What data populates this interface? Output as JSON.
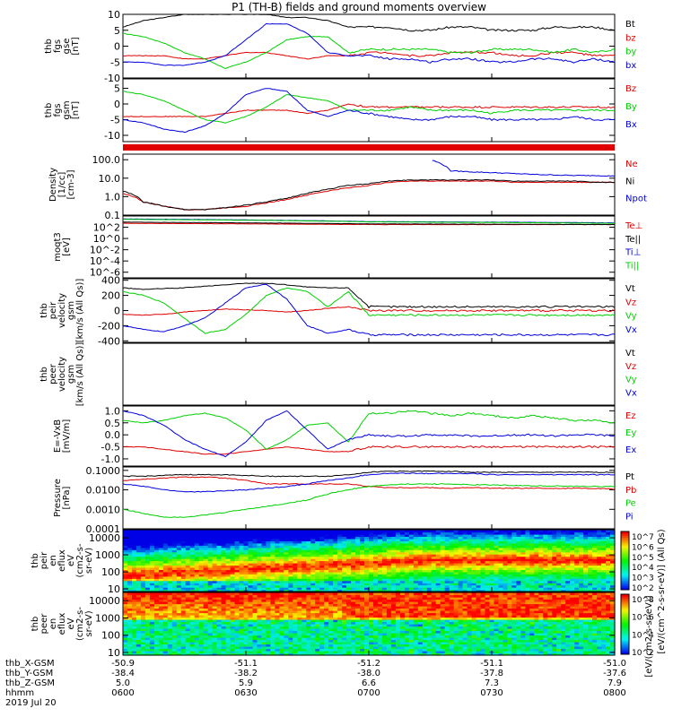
{
  "title": "P1 (TH-B) fields and ground moments overview",
  "colors": {
    "black": "#000000",
    "red": "#e00000",
    "green": "#00d000",
    "blue": "#0000e0"
  },
  "x_axis": {
    "ticks": [
      "0600",
      "0630",
      "0700",
      "0730",
      "0800"
    ],
    "rows": [
      {
        "label": "thb_X-GSM",
        "values": [
          "-50.9",
          "-51.1",
          "-51.2",
          "-51.1",
          "-51.0"
        ]
      },
      {
        "label": "thb_Y-GSM",
        "values": [
          "-38.4",
          "-38.2",
          "-38.0",
          "-37.8",
          "-37.6"
        ]
      },
      {
        "label": "thb_Z-GSM",
        "values": [
          "5.0",
          "5.9",
          "6.6",
          "7.3",
          "7.9"
        ]
      },
      {
        "label": "hhmm",
        "values": [
          "0600",
          "0630",
          "0700",
          "0730",
          "0800"
        ]
      }
    ],
    "date": "2019 Jul 20"
  },
  "colorbar": {
    "label": "[eV/(cm2-s-sr-eV)]",
    "label_right": "[eV/(cm^2-s-sr-eV)] (All Qs)",
    "ticks_top": [
      "10^7",
      "10^6",
      "10^5",
      "10^4",
      "10^3",
      "10^2"
    ],
    "ticks_bottom": [
      "10^8",
      "10^6",
      "10^4",
      "10^2"
    ]
  },
  "chart_data": [
    {
      "type": "line",
      "ylabel": [
        "thb",
        "fgs",
        "gse",
        "[nT]"
      ],
      "ylim": [
        -10,
        10
      ],
      "yticks": [
        "10",
        "5",
        "0",
        "-5",
        "-10"
      ],
      "series": [
        {
          "name": "Bt",
          "color": "#000000"
        },
        {
          "name": "bz",
          "color": "#e00000"
        },
        {
          "name": "by",
          "color": "#00d000"
        },
        {
          "name": "bx",
          "color": "#0000e0"
        }
      ],
      "x": [
        0,
        5,
        10,
        15,
        20,
        25,
        30,
        35,
        40,
        45,
        50,
        55,
        60,
        65,
        70,
        75,
        80,
        85,
        90,
        95,
        100,
        105,
        110,
        115,
        120
      ],
      "values": {
        "Bt": [
          6,
          8,
          9,
          10,
          10,
          10,
          10,
          10,
          9,
          9,
          8,
          6,
          6,
          6,
          5,
          5,
          6,
          6,
          5,
          5,
          5,
          6,
          6,
          6,
          5
        ],
        "bz": [
          -3,
          -3,
          -3,
          -4,
          -4,
          -3,
          -2,
          -2,
          -3,
          -4,
          -3,
          -3,
          -2,
          -2,
          -3,
          -3,
          -2,
          -2,
          -2,
          -3,
          -3,
          -2,
          -2,
          -3,
          -3
        ],
        "by": [
          4,
          3,
          1,
          -2,
          -4,
          -7,
          -5,
          -2,
          2,
          3,
          3,
          -2,
          -1,
          -1,
          -1,
          -1,
          -2,
          -2,
          -1,
          -1,
          -1,
          -2,
          -1,
          -2,
          -1
        ],
        "bx": [
          -5,
          -5,
          -6,
          -6,
          -5,
          -3,
          2,
          7,
          7,
          4,
          -2,
          -3,
          -3,
          -4,
          -4,
          -5,
          -4,
          -4,
          -5,
          -5,
          -4,
          -4,
          -5,
          -4,
          -5
        ]
      }
    },
    {
      "type": "line",
      "ylabel": [
        "thb",
        "fgs",
        "gsm",
        "[nT]"
      ],
      "ylim": [
        -12,
        8
      ],
      "yticks": [
        "5",
        "0",
        "-5",
        "-10"
      ],
      "series": [
        {
          "name": "Bz",
          "color": "#e00000"
        },
        {
          "name": "By",
          "color": "#00d000"
        },
        {
          "name": "Bx",
          "color": "#0000e0"
        }
      ],
      "x": [
        0,
        5,
        10,
        15,
        20,
        25,
        30,
        35,
        40,
        45,
        50,
        55,
        60,
        65,
        70,
        75,
        80,
        85,
        90,
        95,
        100,
        105,
        110,
        115,
        120
      ],
      "values": {
        "Bz": [
          -4,
          -4,
          -4,
          -4,
          -4,
          -3,
          -2,
          -2,
          -2,
          -3,
          -2,
          0,
          -1,
          -1,
          -1,
          -1,
          -1,
          -1,
          -1,
          -1,
          -1,
          -1,
          -1,
          -1,
          -1
        ],
        "By": [
          4,
          3,
          1,
          -2,
          -5,
          -6,
          -4,
          -1,
          3,
          2,
          1,
          -2,
          -2,
          -2,
          -1,
          -2,
          -2,
          -2,
          -3,
          -2,
          -2,
          -2,
          -2,
          -2,
          -2
        ],
        "Bx": [
          -5,
          -6,
          -8,
          -9,
          -7,
          -3,
          3,
          5,
          4,
          -2,
          -4,
          -2,
          -3,
          -4,
          -5,
          -5,
          -4,
          -4,
          -5,
          -5,
          -5,
          -5,
          -4,
          -5,
          -5
        ]
      }
    },
    {
      "type": "line",
      "ylabel": [
        "Density",
        "[1/cc]",
        "[cm-3]"
      ],
      "yscale": "log",
      "ylim": [
        0.1,
        200
      ],
      "yticks": [
        "100.0",
        "10.0",
        "1.0",
        "0.1"
      ],
      "series": [
        {
          "name": "Ne",
          "color": "#e00000"
        },
        {
          "name": "Ni",
          "color": "#000000"
        },
        {
          "name": "Npot",
          "color": "#0000e0"
        }
      ],
      "x": [
        0,
        5,
        10,
        15,
        20,
        25,
        30,
        35,
        40,
        45,
        50,
        55,
        60,
        65,
        70,
        75,
        80,
        85,
        90,
        95,
        100,
        105,
        110,
        115,
        120
      ],
      "values": {
        "Ni": [
          2,
          0.5,
          0.3,
          0.2,
          0.2,
          0.25,
          0.35,
          0.5,
          0.8,
          1.5,
          2.5,
          4,
          5,
          7,
          8,
          8,
          8,
          8,
          8,
          7,
          7,
          7,
          7,
          6,
          6
        ],
        "Ne": [
          1.5,
          0.5,
          0.3,
          0.2,
          0.2,
          0.25,
          0.3,
          0.45,
          0.7,
          1.2,
          2,
          3,
          4,
          6,
          7,
          7,
          7,
          7,
          7,
          6,
          6,
          6,
          6,
          6,
          6
        ],
        "Npot": [
          null,
          null,
          null,
          null,
          null,
          null,
          null,
          null,
          null,
          null,
          null,
          null,
          null,
          null,
          null,
          100,
          25,
          22,
          20,
          18,
          16,
          15,
          14,
          14,
          13
        ]
      }
    },
    {
      "type": "line",
      "ylabel": [
        "moqt3",
        "[eV]"
      ],
      "yscale": "log",
      "ylim": [
        1e-07,
        10000
      ],
      "yticks": [
        "10^2",
        "10^0",
        "10^-2",
        "10^-4",
        "10^-6"
      ],
      "series": [
        {
          "name": "Te⊥",
          "color": "#e00000"
        },
        {
          "name": "Te||",
          "color": "#000000"
        },
        {
          "name": "Ti⊥",
          "color": "#0000e0"
        },
        {
          "name": "Ti||",
          "color": "#00d000"
        }
      ],
      "x": [
        0,
        30,
        60,
        90,
        120
      ],
      "values": {
        "Te⊥": [
          500,
          400,
          300,
          300,
          300
        ],
        "Te||": [
          800,
          600,
          400,
          350,
          300
        ],
        "Ti⊥": [
          3000,
          2000,
          1000,
          800,
          600
        ],
        "Ti||": [
          2500,
          1800,
          900,
          700,
          500
        ]
      }
    },
    {
      "type": "line",
      "ylabel": [
        "thb",
        "peir",
        "velocity",
        "gsm",
        "[km/s (All Qs)]"
      ],
      "ylim": [
        -420,
        420
      ],
      "yticks": [
        "400",
        "200",
        "0",
        "-200",
        "-400"
      ],
      "series": [
        {
          "name": "Vt",
          "color": "#000000"
        },
        {
          "name": "Vz",
          "color": "#e00000"
        },
        {
          "name": "Vy",
          "color": "#00d000"
        },
        {
          "name": "Vx",
          "color": "#0000e0"
        }
      ],
      "x": [
        0,
        5,
        10,
        15,
        20,
        25,
        30,
        35,
        40,
        45,
        50,
        55,
        60,
        65,
        70,
        75,
        80,
        85,
        90,
        95,
        100,
        105,
        110,
        115,
        120
      ],
      "values": {
        "Vt": [
          300,
          280,
          290,
          300,
          320,
          340,
          360,
          360,
          340,
          310,
          300,
          300,
          50,
          50,
          50,
          50,
          50,
          50,
          50,
          50,
          50,
          50,
          50,
          50,
          50
        ],
        "Vz": [
          -50,
          -60,
          -50,
          -20,
          0,
          20,
          10,
          0,
          -20,
          0,
          30,
          50,
          0,
          0,
          0,
          0,
          0,
          0,
          0,
          0,
          0,
          0,
          0,
          0,
          0
        ],
        "Vy": [
          250,
          200,
          100,
          -100,
          -300,
          -250,
          -50,
          200,
          300,
          250,
          50,
          250,
          -60,
          -60,
          -60,
          -60,
          -60,
          -60,
          -60,
          -60,
          -60,
          -60,
          -60,
          -60,
          -60
        ],
        "Vx": [
          -200,
          -250,
          -280,
          -200,
          -100,
          100,
          300,
          350,
          150,
          -200,
          -300,
          -250,
          -320,
          -320,
          -320,
          -320,
          -320,
          -320,
          -320,
          -320,
          -320,
          -320,
          -320,
          -320,
          -320
        ]
      }
    },
    {
      "type": "line",
      "ylabel": [
        "thb",
        "peer",
        "velocity",
        "gsm",
        "[km/s (All Qs)]"
      ],
      "ylim": [
        -420,
        420
      ],
      "yticks": [],
      "series": [
        {
          "name": "Vt",
          "color": "#000000"
        },
        {
          "name": "Vz",
          "color": "#e00000"
        },
        {
          "name": "Vy",
          "color": "#00d000"
        },
        {
          "name": "Vx",
          "color": "#0000e0"
        }
      ],
      "x": [],
      "values": {}
    },
    {
      "type": "line",
      "ylabel": [
        "E=-VxB",
        "[mV/m]"
      ],
      "ylim": [
        -1.3,
        1.2
      ],
      "yticks": [
        "1.0",
        "0.5",
        "0.0",
        "-0.5",
        "-1.0"
      ],
      "series": [
        {
          "name": "Ez",
          "color": "#e00000"
        },
        {
          "name": "Ey",
          "color": "#00d000"
        },
        {
          "name": "Ex",
          "color": "#0000e0"
        }
      ],
      "x": [
        0,
        5,
        10,
        15,
        20,
        25,
        30,
        35,
        40,
        45,
        50,
        55,
        60,
        65,
        70,
        75,
        80,
        85,
        90,
        95,
        100,
        105,
        110,
        115,
        120
      ],
      "values": {
        "Ez": [
          -0.5,
          -0.5,
          -0.6,
          -0.7,
          -0.8,
          -0.8,
          -0.7,
          -0.6,
          -0.5,
          -0.6,
          -0.7,
          -0.7,
          -0.5,
          -0.5,
          -0.5,
          -0.5,
          -0.5,
          -0.5,
          -0.5,
          -0.5,
          -0.5,
          -0.5,
          -0.5,
          -0.5,
          -0.5
        ],
        "Ey": [
          0.6,
          0.5,
          0.6,
          0.8,
          0.9,
          0.7,
          0.2,
          -0.6,
          -0.2,
          0.4,
          0.5,
          -0.3,
          0.9,
          0.9,
          1.0,
          0.9,
          0.8,
          0.9,
          0.8,
          0.7,
          0.8,
          0.7,
          0.6,
          0.6,
          0.5
        ],
        "Ex": [
          1.0,
          0.8,
          0.4,
          -0.2,
          -0.6,
          -0.9,
          -0.3,
          0.6,
          1.0,
          0.2,
          -0.6,
          -0.2,
          0.0,
          -0.05,
          -0.05,
          0.0,
          0.0,
          -0.05,
          -0.05,
          0.0,
          0.0,
          -0.05,
          0.0,
          0.0,
          -0.05
        ]
      }
    },
    {
      "type": "line",
      "ylabel": [
        "Pressure",
        "[nPa]"
      ],
      "yscale": "log",
      "ylim": [
        0.0001,
        0.15
      ],
      "yticks": [
        "0.1000",
        "0.0100",
        "0.0010",
        "0.0001"
      ],
      "series": [
        {
          "name": "Pt",
          "color": "#000000"
        },
        {
          "name": "Pb",
          "color": "#e00000"
        },
        {
          "name": "Pe",
          "color": "#00d000"
        },
        {
          "name": "Pi",
          "color": "#0000e0"
        }
      ],
      "x": [
        0,
        5,
        10,
        15,
        20,
        25,
        30,
        35,
        40,
        45,
        50,
        55,
        60,
        65,
        70,
        75,
        80,
        85,
        90,
        95,
        100,
        105,
        110,
        115,
        120
      ],
      "values": {
        "Pt": [
          0.05,
          0.05,
          0.055,
          0.06,
          0.06,
          0.06,
          0.055,
          0.05,
          0.05,
          0.05,
          0.05,
          0.06,
          0.08,
          0.09,
          0.09,
          0.09,
          0.09,
          0.08,
          0.08,
          0.08,
          0.08,
          0.08,
          0.08,
          0.08,
          0.08
        ],
        "Pb": [
          0.03,
          0.035,
          0.04,
          0.045,
          0.045,
          0.04,
          0.03,
          0.02,
          0.02,
          0.02,
          0.02,
          0.02,
          0.015,
          0.013,
          0.013,
          0.013,
          0.012,
          0.013,
          0.012,
          0.012,
          0.012,
          0.012,
          0.012,
          0.012,
          0.011
        ],
        "Pe": [
          0.001,
          0.0006,
          0.0004,
          0.0004,
          0.0005,
          0.0007,
          0.001,
          0.0014,
          0.002,
          0.003,
          0.006,
          0.01,
          0.015,
          0.018,
          0.02,
          0.02,
          0.02,
          0.018,
          0.018,
          0.017,
          0.016,
          0.016,
          0.015,
          0.015,
          0.015
        ],
        "Pi": [
          0.02,
          0.015,
          0.01,
          0.008,
          0.008,
          0.009,
          0.01,
          0.012,
          0.015,
          0.02,
          0.03,
          0.04,
          0.06,
          0.07,
          0.07,
          0.07,
          0.07,
          0.07,
          0.06,
          0.06,
          0.06,
          0.06,
          0.06,
          0.06,
          0.06
        ]
      }
    },
    {
      "type": "heatmap",
      "ylabel": [
        "thb",
        "peir",
        "en",
        "eflux",
        "eV",
        "(cm2-s-",
        "sr-eV)"
      ],
      "yscale": "log",
      "ylim": [
        7,
        30000
      ],
      "yticks": [
        "10000",
        "1000",
        "100",
        "10"
      ]
    },
    {
      "type": "heatmap",
      "ylabel": [
        "thb",
        "peer",
        "en",
        "eflux",
        "eV",
        "(cm2-s-",
        "sr-eV)"
      ],
      "yscale": "log",
      "ylim": [
        7,
        30000
      ],
      "yticks": [
        "10000",
        "1000",
        "100",
        "10"
      ]
    }
  ]
}
